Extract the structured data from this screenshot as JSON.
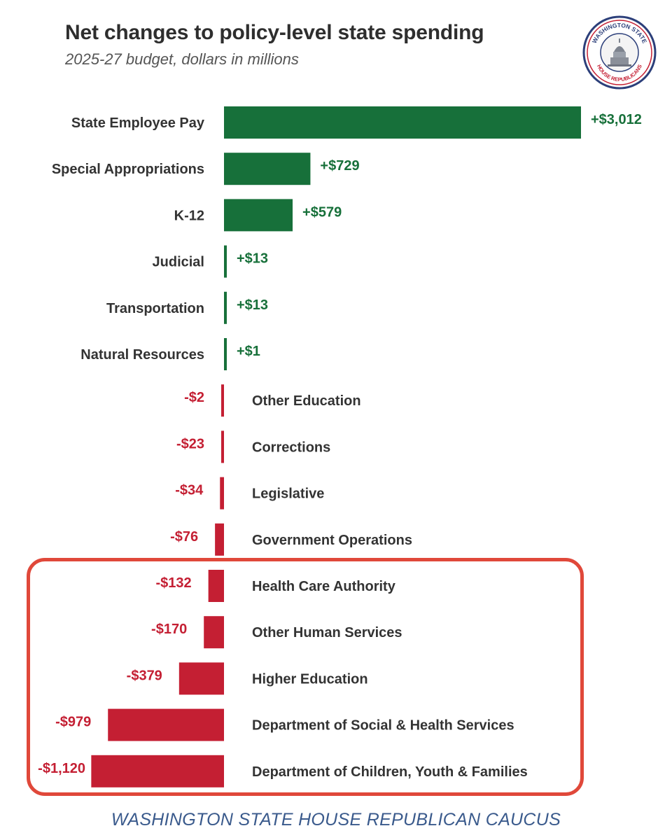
{
  "chart_data": {
    "type": "bar",
    "orientation": "horizontal",
    "title": "Net changes to policy-level state spending",
    "subtitle": "2025-27 budget, dollars in millions",
    "categories": [
      "State Employee Pay",
      "Special Appropriations",
      "K-12",
      "Judicial",
      "Transportation",
      "Natural Resources",
      "Other Education",
      "Corrections",
      "Legislative",
      "Government Operations",
      "Health Care Authority",
      "Other Human Services",
      "Higher Education",
      "Department of Social & Health Services",
      "Department of Children, Youth & Families"
    ],
    "values": [
      3012,
      729,
      579,
      13,
      13,
      1,
      -2,
      -23,
      -34,
      -76,
      -132,
      -170,
      -379,
      -979,
      -1120
    ],
    "data_labels": [
      "+$3,012",
      "+$729",
      "+$579",
      "+$13",
      "+$13",
      "+$1",
      "-$2",
      "-$23",
      "-$34",
      "-$76",
      "-$132",
      "-$170",
      "-$379",
      "-$979",
      "-$1,120"
    ],
    "highlighted_categories": [
      "Health Care Authority",
      "Other Human Services",
      "Higher Education",
      "Department of Social & Health Services",
      "Department of Children, Youth & Families"
    ],
    "colors": {
      "positive": "#17703a",
      "negative": "#c41f33",
      "highlight_border": "#e0483a"
    },
    "grid": false,
    "legend": "none"
  },
  "seal": {
    "text_top": "WASHINGTON STATE",
    "text_bottom": "HOUSE REPUBLICANS"
  },
  "footer": "WASHINGTON STATE HOUSE REPUBLICAN CAUCUS"
}
